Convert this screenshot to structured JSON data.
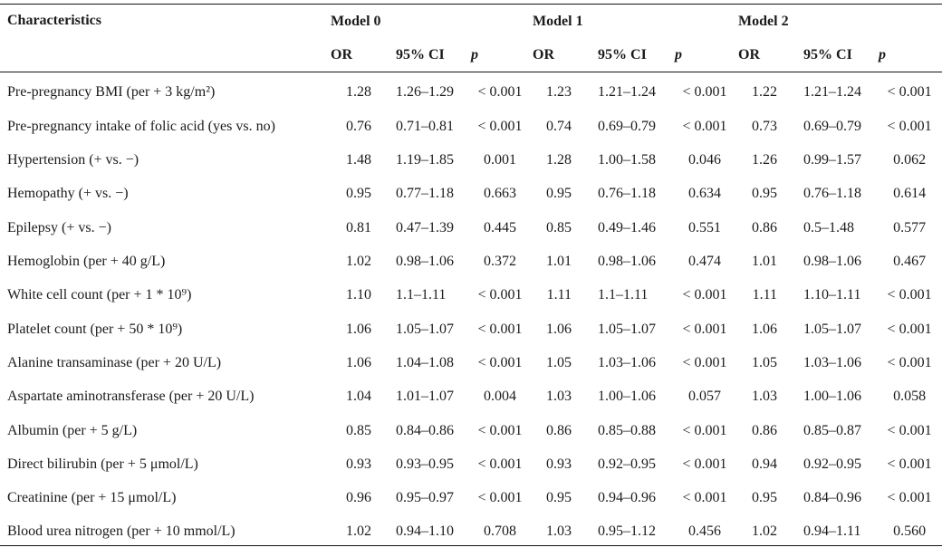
{
  "colors": {
    "background": "#ffffff",
    "text": "#1b1b1b",
    "rule": "#141414"
  },
  "table": {
    "header": {
      "characteristics": "Characteristics",
      "model_groups": [
        {
          "label": "Model 0"
        },
        {
          "label": "Model 1"
        },
        {
          "label": "Model 2"
        }
      ],
      "sub_columns": {
        "or": "OR",
        "ci": "95% CI",
        "p": "p"
      }
    },
    "rows": [
      {
        "label": "Pre-pregnancy BMI (per + 3 kg/m²)",
        "m0": [
          "1.28",
          "1.26–1.29",
          "< 0.001"
        ],
        "m1": [
          "1.23",
          "1.21–1.24",
          "< 0.001"
        ],
        "m2": [
          "1.22",
          "1.21–1.24",
          "< 0.001"
        ]
      },
      {
        "label": "Pre-pregnancy intake of folic acid (yes vs. no)",
        "m0": [
          "0.76",
          "0.71–0.81",
          "< 0.001"
        ],
        "m1": [
          "0.74",
          "0.69–0.79",
          "< 0.001"
        ],
        "m2": [
          "0.73",
          "0.69–0.79",
          "< 0.001"
        ]
      },
      {
        "label": "Hypertension (+ vs. −)",
        "m0": [
          "1.48",
          "1.19–1.85",
          "0.001"
        ],
        "m1": [
          "1.28",
          "1.00–1.58",
          "0.046"
        ],
        "m2": [
          "1.26",
          "0.99–1.57",
          "0.062"
        ]
      },
      {
        "label": "Hemopathy (+ vs. −)",
        "m0": [
          "0.95",
          "0.77–1.18",
          "0.663"
        ],
        "m1": [
          "0.95",
          "0.76–1.18",
          "0.634"
        ],
        "m2": [
          "0.95",
          "0.76–1.18",
          "0.614"
        ]
      },
      {
        "label": "Epilepsy (+ vs. −)",
        "m0": [
          "0.81",
          "0.47–1.39",
          "0.445"
        ],
        "m1": [
          "0.85",
          "0.49–1.46",
          "0.551"
        ],
        "m2": [
          "0.86",
          "0.5–1.48",
          "0.577"
        ]
      },
      {
        "label": "Hemoglobin (per + 40 g/L)",
        "m0": [
          "1.02",
          "0.98–1.06",
          "0.372"
        ],
        "m1": [
          "1.01",
          "0.98–1.06",
          "0.474"
        ],
        "m2": [
          "1.01",
          "0.98–1.06",
          "0.467"
        ]
      },
      {
        "label": "White cell count (per + 1 * 10⁹)",
        "m0": [
          "1.10",
          "1.1–1.11",
          "< 0.001"
        ],
        "m1": [
          "1.11",
          "1.1–1.11",
          "< 0.001"
        ],
        "m2": [
          "1.11",
          "1.10–1.11",
          "< 0.001"
        ]
      },
      {
        "label": "Platelet count (per + 50 * 10⁹)",
        "m0": [
          "1.06",
          "1.05–1.07",
          "< 0.001"
        ],
        "m1": [
          "1.06",
          "1.05–1.07",
          "< 0.001"
        ],
        "m2": [
          "1.06",
          "1.05–1.07",
          "< 0.001"
        ]
      },
      {
        "label": "Alanine transaminase (per + 20 U/L)",
        "m0": [
          "1.06",
          "1.04–1.08",
          "< 0.001"
        ],
        "m1": [
          "1.05",
          "1.03–1.06",
          "< 0.001"
        ],
        "m2": [
          "1.05",
          "1.03–1.06",
          "< 0.001"
        ]
      },
      {
        "label": "Aspartate aminotransferase (per + 20 U/L)",
        "m0": [
          "1.04",
          "1.01–1.07",
          "0.004"
        ],
        "m1": [
          "1.03",
          "1.00–1.06",
          "0.057"
        ],
        "m2": [
          "1.03",
          "1.00–1.06",
          "0.058"
        ]
      },
      {
        "label": "Albumin (per + 5 g/L)",
        "m0": [
          "0.85",
          "0.84–0.86",
          "< 0.001"
        ],
        "m1": [
          "0.86",
          "0.85–0.88",
          "< 0.001"
        ],
        "m2": [
          "0.86",
          "0.85–0.87",
          "< 0.001"
        ]
      },
      {
        "label": "Direct bilirubin (per + 5 μmol/L)",
        "m0": [
          "0.93",
          "0.93–0.95",
          "< 0.001"
        ],
        "m1": [
          "0.93",
          "0.92–0.95",
          "< 0.001"
        ],
        "m2": [
          "0.94",
          "0.92–0.95",
          "< 0.001"
        ]
      },
      {
        "label": "Creatinine (per + 15 μmol/L)",
        "m0": [
          "0.96",
          "0.95–0.97",
          "< 0.001"
        ],
        "m1": [
          "0.95",
          "0.94–0.96",
          "< 0.001"
        ],
        "m2": [
          "0.95",
          "0.84–0.96",
          "< 0.001"
        ]
      },
      {
        "label": "Blood urea nitrogen (per + 10 mmol/L)",
        "m0": [
          "1.02",
          "0.94–1.10",
          "0.708"
        ],
        "m1": [
          "1.03",
          "0.95–1.12",
          "0.456"
        ],
        "m2": [
          "1.02",
          "0.94–1.11",
          "0.560"
        ]
      }
    ]
  }
}
